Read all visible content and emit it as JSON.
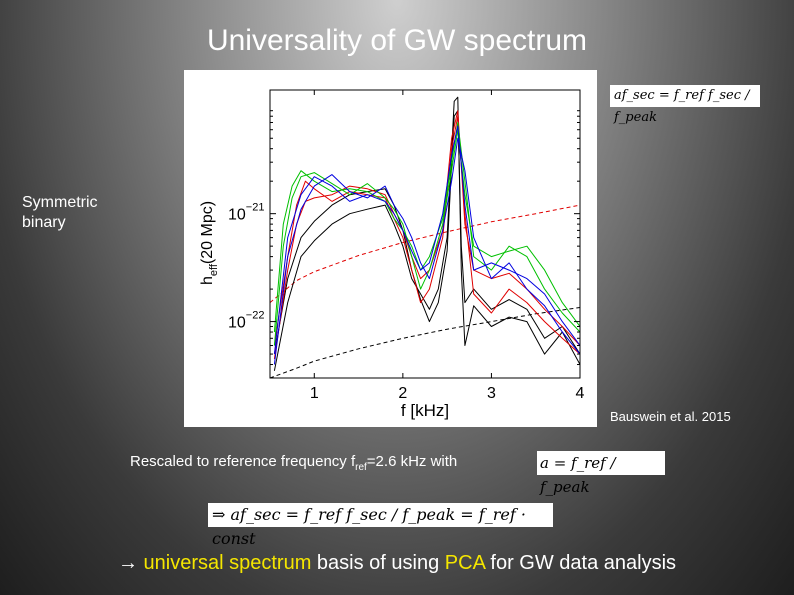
{
  "slide": {
    "title": "Universality of GW spectrum",
    "side_label": "Symmetric\nbinary",
    "eq_top": "af_sec = f_ref f_sec / f_peak",
    "citation": "Bauswein et al. 2015",
    "rescale_pre": "Rescaled to reference frequency f",
    "rescale_sub": "ref",
    "rescale_post": "=2.6 kHz with",
    "eq_a": "a = f_ref / f_peak",
    "eq_const": "⇒ af_sec = f_ref f_sec / f_peak = f_ref · const",
    "bottom": {
      "arrow": "→ ",
      "hl1": "universal spectrum",
      "mid": " basis of using ",
      "hl2": "PCA",
      "end": " for GW data analysis"
    }
  },
  "chart_data": {
    "type": "line",
    "xlabel": "f [kHz]",
    "ylabel_main": "h",
    "ylabel_sub": "eff",
    "ylabel_rest": "(20 Mpc)",
    "xlim": [
      0.5,
      4.0
    ],
    "ylog": true,
    "ylim": [
      3e-23,
      1.4e-20
    ],
    "x_ticks": [
      1,
      2,
      3,
      4
    ],
    "y_ticks": [
      {
        "value": 1e-21,
        "base": "10",
        "exp": "−21"
      },
      {
        "value": 1e-22,
        "base": "10",
        "exp": "−22"
      }
    ],
    "colors": {
      "black": "#000000",
      "red": "#e00000",
      "green": "#00c000",
      "blue": "#0000e0"
    },
    "noise_curves": [
      {
        "color": "#e00000",
        "style": "dashed",
        "x": [
          0.5,
          0.8,
          1.0,
          1.5,
          2.0,
          2.5,
          3.0,
          3.5,
          4.0
        ],
        "y": [
          1.5e-22,
          2.4e-22,
          2.9e-22,
          4.1e-22,
          5.4e-22,
          6.8e-22,
          8.4e-22,
          1e-21,
          1.2e-21
        ]
      },
      {
        "color": "#000000",
        "style": "dashed",
        "x": [
          0.5,
          0.8,
          1.0,
          1.5,
          2.0,
          2.5,
          3.0,
          3.5,
          4.0
        ],
        "y": [
          3e-23,
          3.7e-23,
          4.3e-23,
          5.6e-23,
          7e-23,
          8.5e-23,
          1e-22,
          1.18e-22,
          1.35e-22
        ]
      }
    ],
    "series": [
      {
        "color": "#000000",
        "x": [
          0.55,
          0.7,
          0.85,
          1.0,
          1.2,
          1.4,
          1.6,
          1.8,
          1.9,
          2.0,
          2.1,
          2.2,
          2.3,
          2.4,
          2.5,
          2.58,
          2.62,
          2.66,
          2.7,
          2.8,
          3.0,
          3.2,
          3.4,
          3.6,
          3.8,
          4.0
        ],
        "y": [
          3.5e-23,
          1.5e-22,
          4e-22,
          5.6e-22,
          8e-22,
          1e-21,
          1.1e-21,
          1.2e-21,
          8e-22,
          5e-22,
          2.5e-22,
          1.8e-22,
          1.3e-22,
          2e-22,
          6e-22,
          1.1e-20,
          1.2e-20,
          3e-22,
          6e-23,
          1.4e-22,
          9e-23,
          1.1e-22,
          1e-22,
          5e-23,
          8e-23,
          4e-23
        ]
      },
      {
        "color": "#000000",
        "x": [
          0.55,
          0.7,
          0.85,
          1.0,
          1.2,
          1.4,
          1.6,
          1.8,
          1.9,
          2.0,
          2.1,
          2.2,
          2.3,
          2.4,
          2.5,
          2.58,
          2.62,
          2.66,
          2.7,
          2.8,
          3.0,
          3.2,
          3.4,
          3.6,
          3.8,
          4.0
        ],
        "y": [
          5e-23,
          2.5e-22,
          6e-22,
          8.5e-22,
          1.2e-21,
          1.5e-21,
          1.6e-21,
          1.7e-21,
          1.2e-21,
          7e-22,
          3e-22,
          1.6e-22,
          1e-22,
          1.5e-22,
          4.5e-22,
          8e-21,
          9e-21,
          5e-22,
          1.5e-22,
          2e-22,
          1.3e-22,
          1.6e-22,
          1.3e-22,
          7e-23,
          9e-23,
          5e-23
        ]
      },
      {
        "color": "#e00000",
        "x": [
          0.55,
          0.7,
          0.8,
          0.9,
          1.0,
          1.2,
          1.4,
          1.6,
          1.8,
          1.9,
          2.0,
          2.1,
          2.2,
          2.3,
          2.45,
          2.55,
          2.62,
          2.7,
          2.8,
          3.0,
          3.2,
          3.4,
          3.6,
          3.8,
          4.0
        ],
        "y": [
          6e-23,
          4e-22,
          1.2e-21,
          2e-21,
          1.7e-21,
          1.3e-21,
          1.6e-21,
          1.5e-21,
          1.4e-21,
          9e-22,
          6e-22,
          3e-22,
          1.5e-22,
          2e-22,
          6e-22,
          4e-21,
          8e-21,
          1e-21,
          1.8e-22,
          1.2e-22,
          2e-22,
          1.5e-22,
          1e-22,
          7e-23,
          5e-23
        ]
      },
      {
        "color": "#e00000",
        "x": [
          0.55,
          0.7,
          0.8,
          0.9,
          1.0,
          1.2,
          1.4,
          1.6,
          1.8,
          1.9,
          2.0,
          2.1,
          2.2,
          2.3,
          2.45,
          2.55,
          2.62,
          2.7,
          2.8,
          3.0,
          3.2,
          3.4,
          3.6,
          3.8,
          4.0
        ],
        "y": [
          4.5e-23,
          3e-22,
          8e-22,
          1.3e-21,
          1.4e-21,
          1.5e-21,
          1.8e-21,
          1.7e-21,
          1.5e-21,
          1e-21,
          7e-22,
          4e-22,
          2.5e-22,
          3e-22,
          7e-22,
          5e-21,
          9e-21,
          8e-22,
          3e-22,
          2.5e-22,
          2.8e-22,
          2e-22,
          1.3e-22,
          9e-23,
          6e-23
        ]
      },
      {
        "color": "#00c000",
        "x": [
          0.55,
          0.65,
          0.75,
          0.85,
          1.0,
          1.2,
          1.4,
          1.6,
          1.8,
          1.9,
          2.0,
          2.1,
          2.2,
          2.3,
          2.45,
          2.55,
          2.62,
          2.7,
          2.8,
          3.0,
          3.2,
          3.4,
          3.6,
          3.8,
          4.0
        ],
        "y": [
          8e-23,
          8e-22,
          1.8e-21,
          2.5e-21,
          2e-21,
          1.6e-21,
          1.7e-21,
          1.6e-21,
          1.3e-21,
          9e-22,
          7e-22,
          5e-22,
          3e-22,
          4e-22,
          9e-22,
          3e-21,
          7e-21,
          2e-21,
          4e-22,
          3e-22,
          5e-22,
          4e-22,
          2e-22,
          1.2e-22,
          8e-23
        ]
      },
      {
        "color": "#00c000",
        "x": [
          0.55,
          0.65,
          0.75,
          0.85,
          1.0,
          1.2,
          1.4,
          1.6,
          1.8,
          1.9,
          2.0,
          2.1,
          2.2,
          2.3,
          2.45,
          2.55,
          2.62,
          2.7,
          2.8,
          3.0,
          3.2,
          3.4,
          3.6,
          3.8,
          4.0
        ],
        "y": [
          6e-23,
          5e-22,
          1.4e-21,
          2.2e-21,
          2.4e-21,
          1.9e-21,
          1.5e-21,
          1.9e-21,
          1.4e-21,
          1.1e-21,
          8e-22,
          4e-22,
          2e-22,
          3e-22,
          8e-22,
          2.5e-21,
          6e-21,
          1.5e-21,
          5e-22,
          4e-22,
          4.5e-22,
          5e-22,
          3e-22,
          1.5e-22,
          9e-23
        ]
      },
      {
        "color": "#0000e0",
        "x": [
          0.55,
          0.7,
          0.85,
          1.0,
          1.2,
          1.4,
          1.6,
          1.8,
          1.9,
          2.0,
          2.1,
          2.2,
          2.3,
          2.45,
          2.55,
          2.62,
          2.7,
          2.8,
          3.0,
          3.2,
          3.4,
          3.6,
          3.8,
          4.0
        ],
        "y": [
          5e-23,
          6e-22,
          1.5e-21,
          2.2e-21,
          1.8e-21,
          1.3e-21,
          1.5e-21,
          1.3e-21,
          1e-21,
          7e-22,
          4.5e-22,
          3e-22,
          3.5e-22,
          1e-21,
          3.5e-21,
          6.5e-21,
          1.2e-21,
          3e-22,
          3.5e-22,
          3e-22,
          2.5e-22,
          1.8e-22,
          1e-22,
          6e-23
        ]
      },
      {
        "color": "#0000e0",
        "x": [
          0.55,
          0.7,
          0.85,
          1.0,
          1.2,
          1.4,
          1.6,
          1.8,
          1.9,
          2.0,
          2.1,
          2.2,
          2.3,
          2.45,
          2.55,
          2.62,
          2.7,
          2.8,
          3.0,
          3.2,
          3.4,
          3.6,
          3.8,
          4.0
        ],
        "y": [
          4e-23,
          4e-22,
          1.1e-21,
          1.8e-21,
          2.3e-21,
          1.6e-21,
          1.4e-21,
          1.8e-21,
          1.2e-21,
          9e-22,
          6e-22,
          3.5e-22,
          2.5e-22,
          7e-22,
          2e-21,
          5e-21,
          2.5e-21,
          6e-22,
          2.5e-22,
          3.5e-22,
          2e-22,
          1.4e-22,
          8e-23,
          5e-23
        ]
      }
    ]
  }
}
